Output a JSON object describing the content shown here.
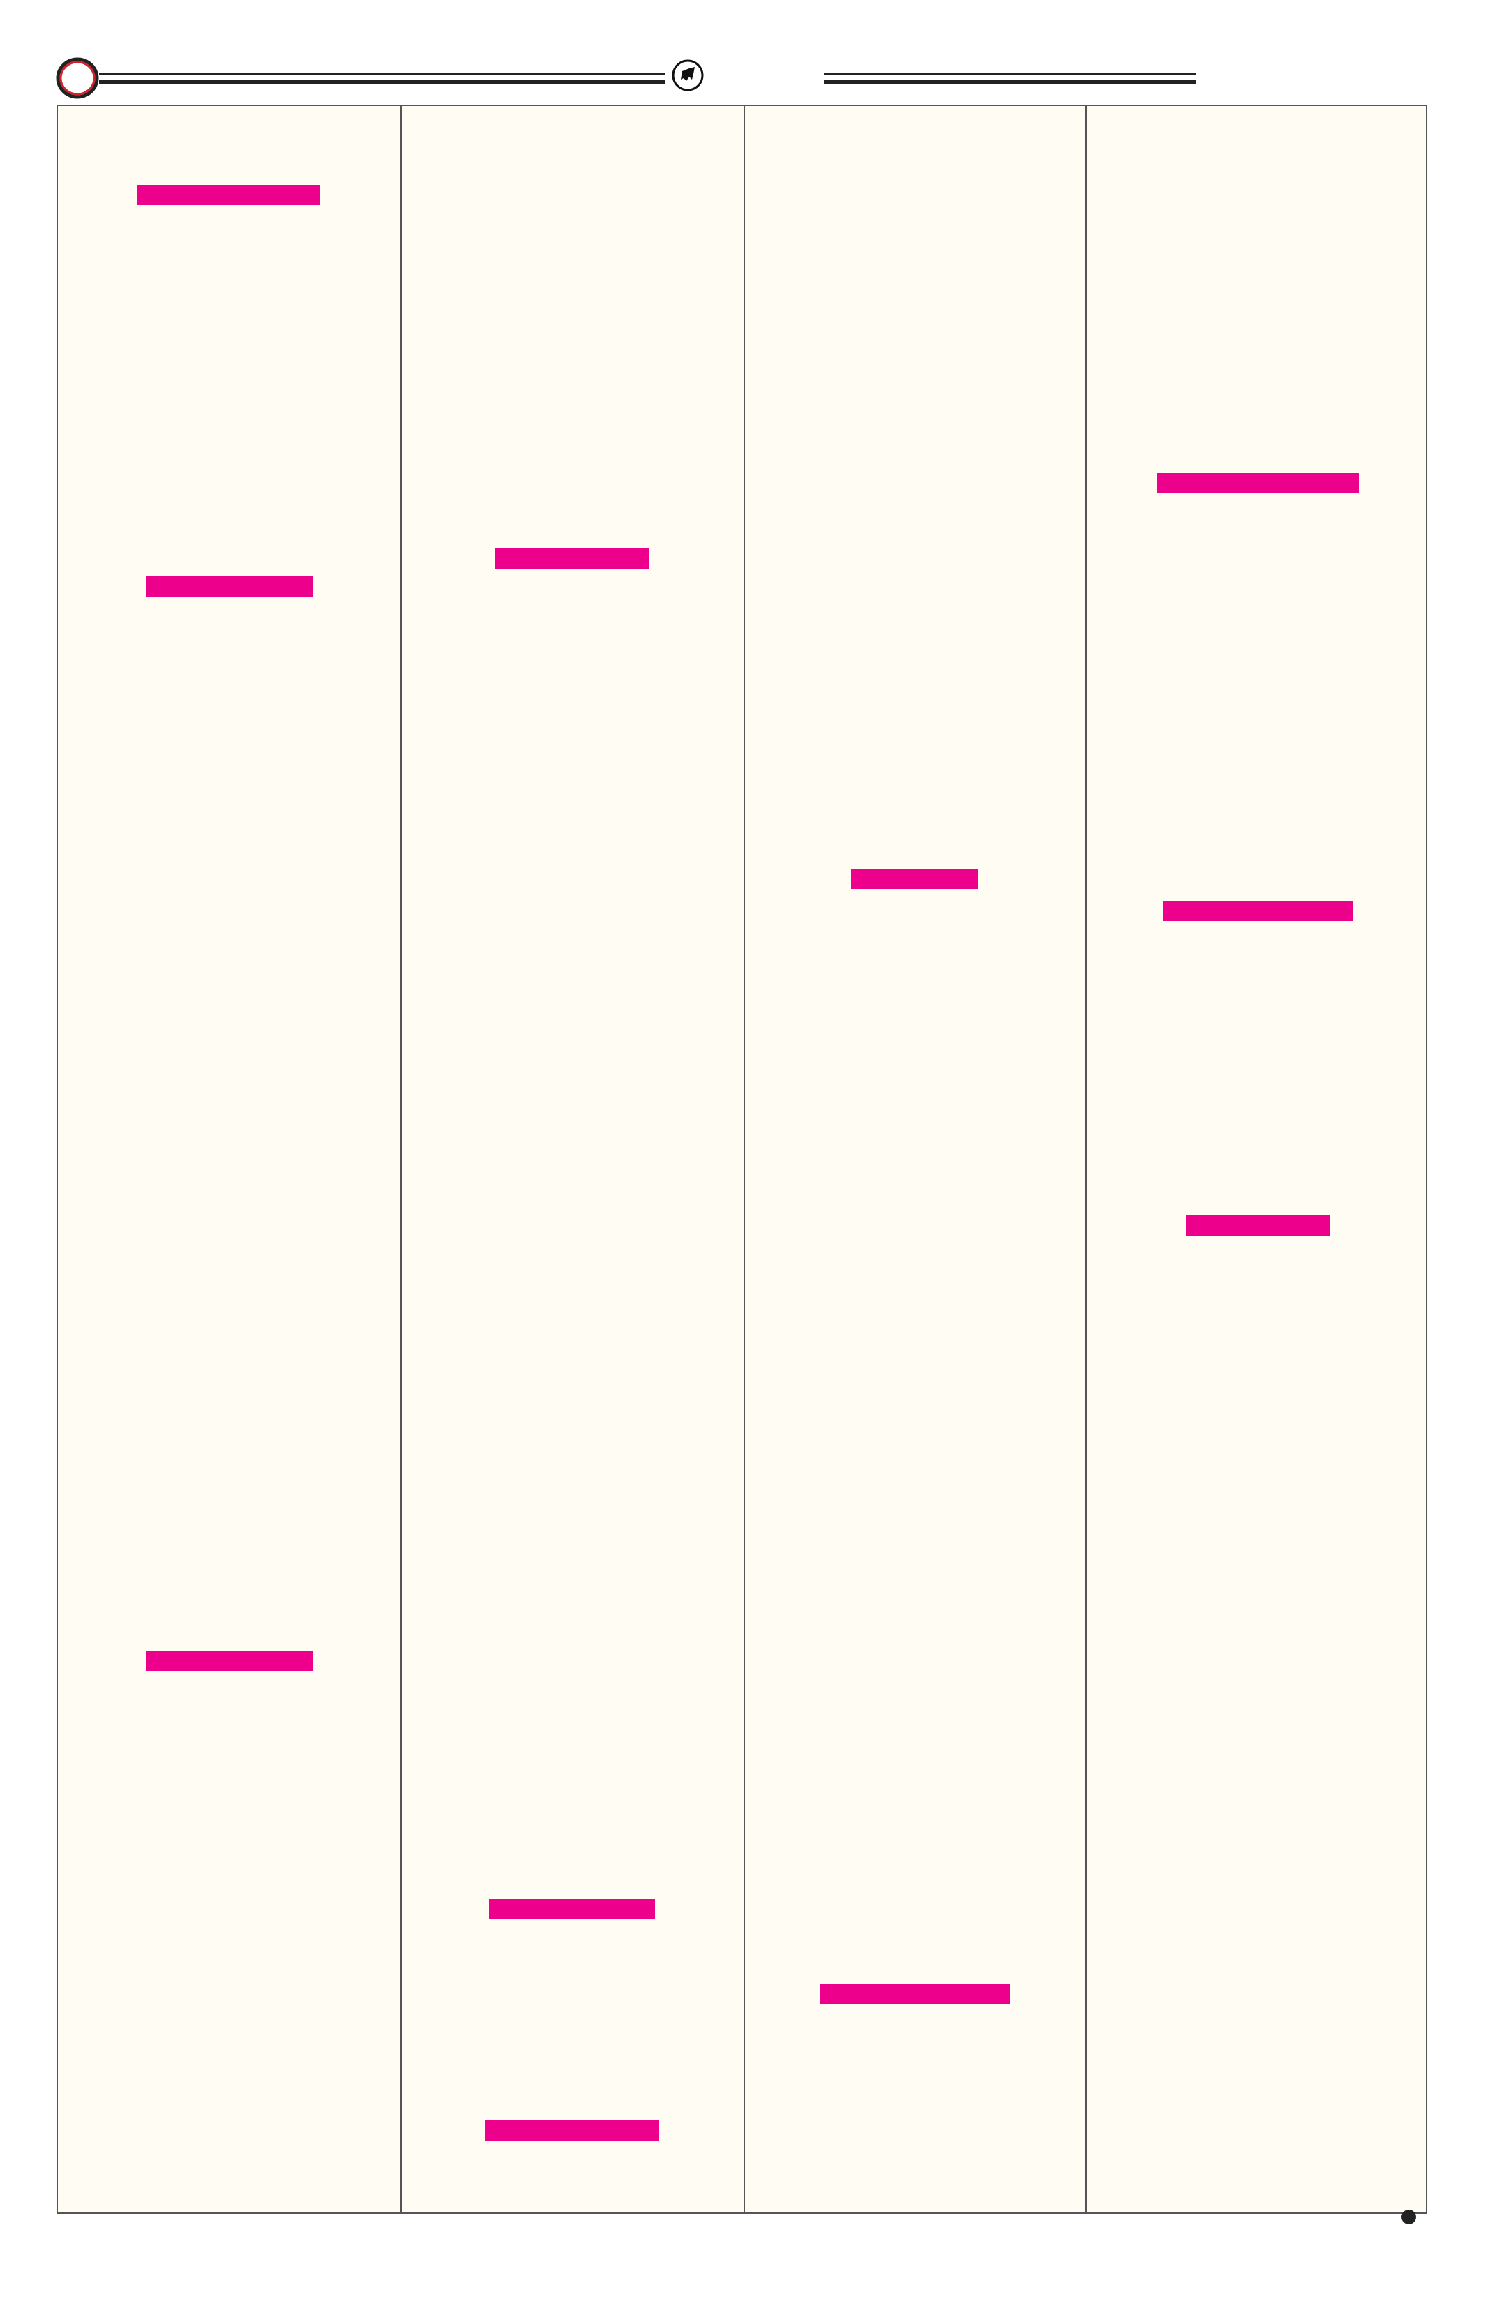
{
  "colors": {
    "page_background": "#fefcf3",
    "redaction_bar": "#ec008c",
    "rule": "#222222",
    "ring_accent": "#d71f2a"
  },
  "header": {
    "left_icon": "red-ring-icon",
    "center_icon": "bull-emblem-icon"
  },
  "footer": {
    "icon": "bullet-dot-icon"
  },
  "columns": 4
}
